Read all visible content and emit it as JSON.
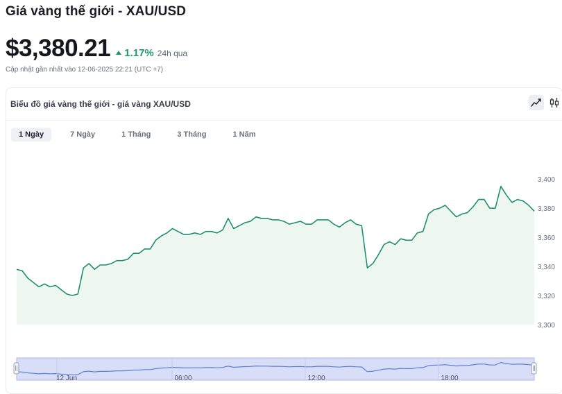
{
  "header": {
    "title": "Giá vàng thế giới - XAU/USD",
    "price": "$3,380.21",
    "change_percent": "1.17%",
    "change_period": "24h qua",
    "updated": "Cập nhật gần nhất vào 12-06-2025 22:21 (UTC +7)"
  },
  "chart_card": {
    "title": "Biểu đồ giá vàng thế giới - giá vàng XAU/USD",
    "chart_types": [
      "line-chart-icon",
      "candlestick-icon"
    ],
    "active_chart_type": "line",
    "tabs": [
      {
        "label": "1 Ngày",
        "active": true
      },
      {
        "label": "7 Ngày",
        "active": false
      },
      {
        "label": "1 Tháng",
        "active": false
      },
      {
        "label": "3 Tháng",
        "active": false
      },
      {
        "label": "1 Năm",
        "active": false
      }
    ]
  },
  "colors": {
    "line": "#1e8f6e",
    "area_fill": "#eef6f2",
    "up": "#1d9a6c",
    "navigator_fill": "#d9def8",
    "navigator_line": "#5b7fd1"
  },
  "chart_data": {
    "type": "area",
    "title": "",
    "xlabel": "",
    "ylabel": "",
    "ylim": [
      3300,
      3402
    ],
    "yticks": [
      "3,300",
      "3,320",
      "3,340",
      "3,360",
      "3,380",
      "3,400"
    ],
    "ytick_values": [
      3300,
      3320,
      3340,
      3360,
      3380,
      3400
    ],
    "grid": false,
    "values": [
      3338,
      3337,
      3332,
      3329,
      3326,
      3328,
      3326,
      3327,
      3324,
      3321,
      3320,
      3321,
      3339,
      3342,
      3338,
      3341,
      3341,
      3342,
      3344,
      3344,
      3345,
      3349,
      3349,
      3352,
      3352,
      3358,
      3361,
      3363,
      3366,
      3364,
      3362,
      3362,
      3363,
      3362,
      3364,
      3364,
      3363,
      3365,
      3373,
      3366,
      3368,
      3370,
      3371,
      3374,
      3373,
      3373,
      3372,
      3372,
      3371,
      3369,
      3370,
      3371,
      3369,
      3369,
      3372,
      3372,
      3372,
      3369,
      3367,
      3370,
      3372,
      3369,
      3368,
      3339,
      3342,
      3348,
      3355,
      3357,
      3355,
      3359,
      3358,
      3358,
      3363,
      3364,
      3376,
      3379,
      3380,
      3382,
      3378,
      3374,
      3376,
      3377,
      3381,
      3386,
      3386,
      3380,
      3380,
      3395,
      3389,
      3384,
      3386,
      3385,
      3382,
      3378
    ],
    "navigator": {
      "x_labels": [
        "12 Jun",
        "06:00",
        "12:00",
        "18:00"
      ]
    }
  }
}
